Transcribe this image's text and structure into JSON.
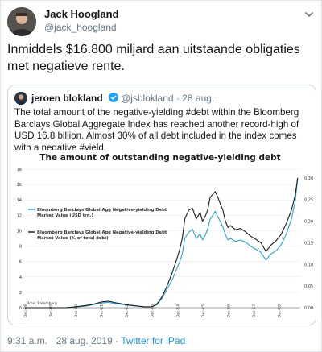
{
  "tweet": {
    "author_name": "Jack Hoogland",
    "author_handle": "@jack_hoogland",
    "text": "Inmiddels $16.800 miljard aan uitstaande obligaties met negatieve rente.",
    "timestamp": "9:31 a.m. · 28 aug. 2019 · ",
    "source": "Twitter for iPad"
  },
  "quoted": {
    "author_name": "jeroen blokland",
    "author_handle": "@jsblokland · 28 aug.",
    "text": "The total amount of the negative-yielding #debt within the Bloomberg Barclays Global Aggregate Index has reached another record-high of USD 16.8 billion. Almost 30% of all debt included in the index comes with a negative #yield."
  },
  "colors": {
    "accent": "#1b95e0",
    "series_usd": "#2aa3d6",
    "series_pct": "#1a1a1a"
  },
  "chart_data": {
    "type": "line",
    "title": "The amount of outstanding negative-yielding debt",
    "source": "Bron: Bloomberg",
    "x_ticks": [
      "Dec-08",
      "Dec-09",
      "Dec-10",
      "Dec-11",
      "Dec-12",
      "Dec-13",
      "Dec-14",
      "Dec-15",
      "Dec-16",
      "Dec-17",
      "Dec-18"
    ],
    "y_left_ticks": [
      "0",
      "2",
      "4",
      "6",
      "8",
      "10",
      "12",
      "14",
      "16",
      "18"
    ],
    "y_left_range": [
      0,
      18
    ],
    "y_right_ticks": [
      "0.00",
      "0.05",
      "0.10",
      "0.15",
      "0.20",
      "0.25",
      "0.30"
    ],
    "y_right_range": [
      0,
      0.32
    ],
    "legend_position": "left",
    "series": [
      {
        "name": "Bloomberg Barclays Global Agg Negative-yielding Debt Market Value (USD trn.)",
        "axis": "left",
        "x": [
          2008.9,
          2009.5,
          2010.0,
          2010.5,
          2010.9,
          2011.3,
          2011.6,
          2011.9,
          2012.2,
          2012.5,
          2012.8,
          2013.0,
          2013.3,
          2013.6,
          2013.9,
          2014.1,
          2014.3,
          2014.5,
          2014.7,
          2014.9,
          2015.0,
          2015.1,
          2015.2,
          2015.35,
          2015.5,
          2015.65,
          2015.8,
          2015.9,
          2016.0,
          2016.1,
          2016.2,
          2016.3,
          2016.4,
          2016.5,
          2016.6,
          2016.7,
          2016.8,
          2016.9,
          2017.0,
          2017.2,
          2017.4,
          2017.6,
          2017.8,
          2018.0,
          2018.2,
          2018.4,
          2018.6,
          2018.8,
          2019.0,
          2019.2,
          2019.4,
          2019.55,
          2019.65
        ],
        "y": [
          0,
          0,
          0,
          0,
          0.1,
          0.2,
          0.4,
          0.6,
          0.7,
          0.5,
          0.4,
          0.3,
          0.2,
          0.1,
          0.1,
          0.4,
          1.2,
          2.4,
          3.6,
          5.2,
          6.0,
          7.0,
          9.0,
          9.8,
          10.2,
          9.0,
          9.6,
          8.8,
          9.4,
          10.2,
          11.5,
          12.0,
          12.5,
          11.8,
          11.2,
          10.5,
          9.5,
          8.8,
          9.0,
          8.6,
          8.8,
          8.5,
          8.0,
          7.6,
          7.2,
          6.2,
          7.0,
          7.4,
          8.2,
          9.6,
          11.5,
          13.8,
          16.8
        ]
      },
      {
        "name": "Bloomberg Barclays Global Agg Negative-yielding Debt Market Value (% of total debt)",
        "axis": "right",
        "x": [
          2008.9,
          2009.5,
          2010.0,
          2010.5,
          2010.9,
          2011.3,
          2011.6,
          2011.9,
          2012.2,
          2012.5,
          2012.8,
          2013.0,
          2013.3,
          2013.6,
          2013.9,
          2014.1,
          2014.3,
          2014.5,
          2014.7,
          2014.9,
          2015.0,
          2015.1,
          2015.2,
          2015.35,
          2015.5,
          2015.65,
          2015.8,
          2015.9,
          2016.0,
          2016.1,
          2016.2,
          2016.3,
          2016.4,
          2016.5,
          2016.6,
          2016.7,
          2016.8,
          2016.9,
          2017.0,
          2017.2,
          2017.4,
          2017.6,
          2017.8,
          2018.0,
          2018.2,
          2018.4,
          2018.6,
          2018.8,
          2019.0,
          2019.2,
          2019.4,
          2019.55,
          2019.65
        ],
        "y": [
          0,
          0,
          0,
          0,
          0.002,
          0.005,
          0.008,
          0.013,
          0.015,
          0.011,
          0.008,
          0.006,
          0.004,
          0.002,
          0.002,
          0.008,
          0.025,
          0.05,
          0.08,
          0.115,
          0.135,
          0.16,
          0.205,
          0.225,
          0.23,
          0.205,
          0.22,
          0.2,
          0.21,
          0.225,
          0.255,
          0.262,
          0.268,
          0.255,
          0.24,
          0.225,
          0.2,
          0.185,
          0.19,
          0.18,
          0.183,
          0.175,
          0.165,
          0.158,
          0.15,
          0.13,
          0.145,
          0.155,
          0.17,
          0.195,
          0.225,
          0.26,
          0.3
        ]
      }
    ]
  }
}
